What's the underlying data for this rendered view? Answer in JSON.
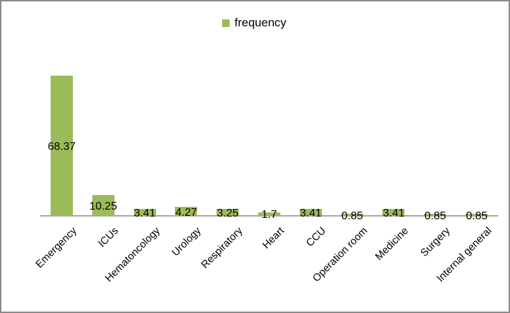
{
  "legend": {
    "label": "frequency",
    "position": "top-center"
  },
  "colors": {
    "bar_fill": "#9bbb59",
    "axis_line": "#a6a6a6",
    "frame_border": "#8a8a8a",
    "text": "#000000",
    "background": "#ffffff"
  },
  "chart_data": {
    "type": "bar",
    "categories": [
      "Emergency",
      "ICUs",
      "Hematoncology",
      "Urology",
      "Respiratory",
      "Heart",
      "CCU",
      "Operation room",
      "Medicine",
      "Surgery",
      "Internal general"
    ],
    "series": [
      {
        "name": "frequency",
        "values": [
          68.37,
          10.25,
          3.41,
          4.27,
          3.25,
          1.7,
          3.41,
          0.85,
          3.41,
          0.85,
          0.85
        ]
      }
    ],
    "data_labels": [
      "68.37",
      "10.25",
      "3.41",
      "4.27",
      "3.25",
      "1.7",
      "3.41",
      "0.85",
      "3.41",
      "0.85",
      "0.85"
    ],
    "legend": [
      "frequency"
    ],
    "legend_position": "top",
    "gridlines": false,
    "y_axis_visible": false,
    "x_tick_rotation": 45,
    "data_label_position": "center"
  }
}
